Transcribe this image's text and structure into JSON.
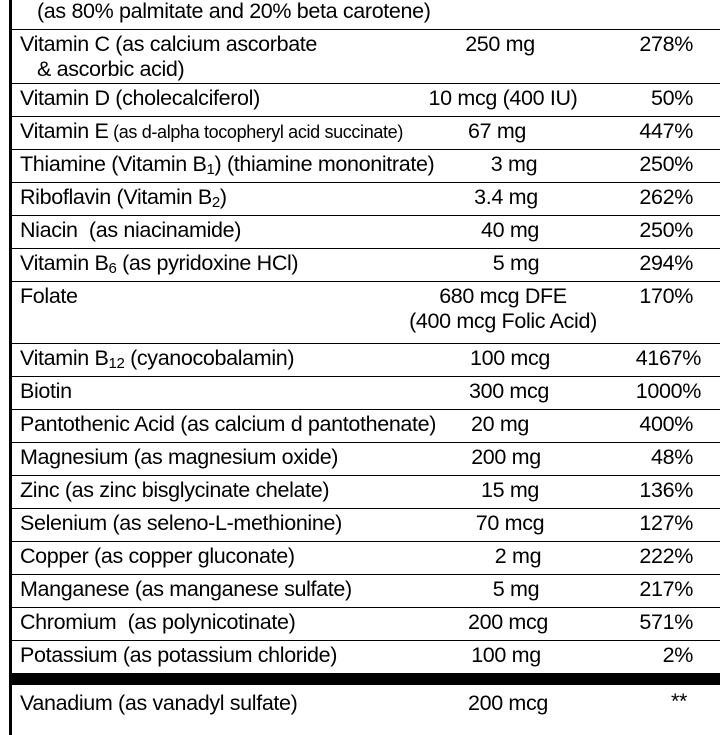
{
  "header_cont": "(as 80% palmitate and 20% beta carotene)",
  "rows": [
    {
      "name": "Vitamin C",
      "detail": " (as calcium ascorbate",
      "detail2": "& ascorbic acid)",
      "amount": "250 mg",
      "dv": "278%"
    },
    {
      "name": "Vitamin D",
      "detail": " (cholecalciferol)",
      "amount": "10 mcg (400 IU)",
      "dv": "50%"
    },
    {
      "name": "Vitamin E",
      "detail": " (as d-alpha tocopheryl acid succinate)",
      "amount": "67 mg",
      "dv": "447%"
    },
    {
      "name": "Thiamine (Vitamin B",
      "sub": "1",
      "detail": ") (thiamine mononitrate)",
      "amount": "3 mg",
      "dv": "250%"
    },
    {
      "name": "Riboflavin (Vitamin B",
      "sub": "2",
      "detail": ")",
      "amount": "3.4 mg",
      "dv": "262%"
    },
    {
      "name": "Niacin",
      "detail": "  (as niacinamide)",
      "amount": "40 mg",
      "dv": "250%"
    },
    {
      "name": "Vitamin B",
      "sub": "6",
      "detail": " (as pyridoxine HCl)",
      "amount": "5 mg",
      "dv": "294%"
    },
    {
      "name": "Folate",
      "detail": "",
      "amount": "680 mcg DFE",
      "amount2": "(400 mcg Folic Acid)",
      "dv": "170%"
    },
    {
      "name": "Vitamin B",
      "sub": "12",
      "detail": " (cyanocobalamin)",
      "amount": "100 mcg",
      "dv": "4167%"
    },
    {
      "name": "Biotin",
      "detail": "",
      "amount": "300 mcg",
      "dv": "1000%"
    },
    {
      "name": "Pantothenic Acid",
      "detail": " (as calcium d pantothenate)",
      "amount": "20 mg",
      "dv": "400%"
    },
    {
      "name": "Magnesium",
      "detail": " (as magnesium oxide)",
      "amount": "200 mg",
      "dv": "48%"
    },
    {
      "name": "Zinc",
      "detail": " (as zinc bisglycinate chelate)",
      "amount": "15 mg",
      "dv": "136%"
    },
    {
      "name": "Selenium",
      "detail": " (as seleno-L-methionine)",
      "amount": "70 mcg",
      "dv": "127%"
    },
    {
      "name": "Copper",
      "detail": " (as copper gluconate)",
      "amount": "2 mg",
      "dv": "222%"
    },
    {
      "name": "Manganese",
      "detail": " (as manganese sulfate)",
      "amount": "5 mg",
      "dv": "217%"
    },
    {
      "name": "Chromium",
      "detail": "  (as polynicotinate)",
      "amount": "200 mcg",
      "dv": "571%"
    },
    {
      "name": "Potassium",
      "detail": " (as potassium chloride)",
      "amount": "100 mg",
      "dv": "2%"
    },
    {
      "name": "Vanadium",
      "detail": " (as vanadyl sulfate)",
      "amount": "200 mcg",
      "dv": "**"
    }
  ]
}
